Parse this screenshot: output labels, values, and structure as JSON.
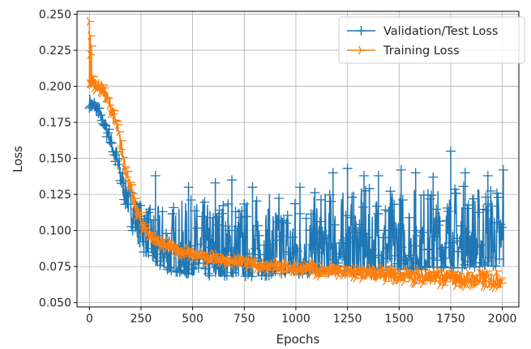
{
  "chart_data": {
    "type": "line",
    "xlabel": "Epochs",
    "ylabel": "Loss",
    "xlim": [
      -60,
      2080
    ],
    "ylim": [
      0.047,
      0.252
    ],
    "x_ticks": [
      0,
      250,
      500,
      750,
      1000,
      1250,
      1500,
      1750,
      2000
    ],
    "y_ticks": [
      0.05,
      0.075,
      0.1,
      0.125,
      0.15,
      0.175,
      0.2,
      0.225,
      0.25
    ],
    "y_tick_labels": [
      "0.050",
      "0.075",
      "0.100",
      "0.125",
      "0.150",
      "0.175",
      "0.200",
      "0.225",
      "0.250"
    ],
    "grid": true,
    "legend_position": "top-right",
    "series": [
      {
        "name": "Validation/Test Loss",
        "color": "#1f77b4",
        "marker": "plus",
        "x": [
          0,
          25,
          50,
          75,
          100,
          125,
          150,
          175,
          200,
          225,
          250,
          275,
          300,
          350,
          400,
          450,
          500,
          600,
          700,
          800,
          900,
          1000,
          1100,
          1200,
          1300,
          1400,
          1500,
          1600,
          1700,
          1800,
          1900,
          2000
        ],
        "y_low": [
          0.185,
          0.181,
          0.176,
          0.168,
          0.158,
          0.145,
          0.13,
          0.116,
          0.104,
          0.094,
          0.086,
          0.081,
          0.078,
          0.074,
          0.072,
          0.07,
          0.069,
          0.068,
          0.068,
          0.068,
          0.069,
          0.069,
          0.07,
          0.071,
          0.072,
          0.072,
          0.073,
          0.073,
          0.074,
          0.074,
          0.075,
          0.075
        ],
        "y_high": [
          0.195,
          0.19,
          0.185,
          0.178,
          0.17,
          0.16,
          0.148,
          0.136,
          0.128,
          0.124,
          0.12,
          0.118,
          0.116,
          0.118,
          0.12,
          0.121,
          0.122,
          0.123,
          0.124,
          0.125,
          0.126,
          0.126,
          0.127,
          0.128,
          0.129,
          0.13,
          0.131,
          0.132,
          0.132,
          0.133,
          0.133,
          0.134
        ],
        "peaks": [
          [
            320,
            0.138
          ],
          [
            480,
            0.13
          ],
          [
            610,
            0.133
          ],
          [
            690,
            0.135
          ],
          [
            790,
            0.13
          ],
          [
            1020,
            0.13
          ],
          [
            1180,
            0.14
          ],
          [
            1250,
            0.143
          ],
          [
            1330,
            0.138
          ],
          [
            1400,
            0.138
          ],
          [
            1510,
            0.142
          ],
          [
            1580,
            0.14
          ],
          [
            1665,
            0.137
          ],
          [
            1750,
            0.155
          ],
          [
            1820,
            0.14
          ],
          [
            1930,
            0.138
          ],
          [
            2005,
            0.142
          ]
        ]
      },
      {
        "name": "Training Loss",
        "color": "#ff7f0e",
        "marker": "tri_right",
        "x": [
          0,
          25,
          50,
          75,
          100,
          125,
          150,
          175,
          200,
          225,
          250,
          275,
          300,
          350,
          400,
          450,
          500,
          600,
          700,
          800,
          900,
          1000,
          1100,
          1200,
          1300,
          1400,
          1500,
          1600,
          1700,
          1800,
          1900,
          2000
        ],
        "y_low": [
          0.2,
          0.198,
          0.195,
          0.19,
          0.182,
          0.17,
          0.155,
          0.138,
          0.122,
          0.11,
          0.101,
          0.095,
          0.091,
          0.087,
          0.084,
          0.082,
          0.08,
          0.077,
          0.075,
          0.073,
          0.071,
          0.07,
          0.068,
          0.067,
          0.066,
          0.065,
          0.064,
          0.063,
          0.062,
          0.061,
          0.06,
          0.06
        ],
        "y_high": [
          0.21,
          0.207,
          0.204,
          0.2,
          0.193,
          0.182,
          0.167,
          0.15,
          0.134,
          0.121,
          0.111,
          0.104,
          0.1,
          0.095,
          0.092,
          0.089,
          0.087,
          0.084,
          0.082,
          0.08,
          0.079,
          0.078,
          0.077,
          0.076,
          0.075,
          0.074,
          0.074,
          0.073,
          0.073,
          0.072,
          0.072,
          0.072
        ],
        "peaks": [
          [
            0,
            0.245
          ],
          [
            5,
            0.235
          ],
          [
            10,
            0.228
          ],
          [
            3,
            0.222
          ]
        ]
      }
    ]
  }
}
